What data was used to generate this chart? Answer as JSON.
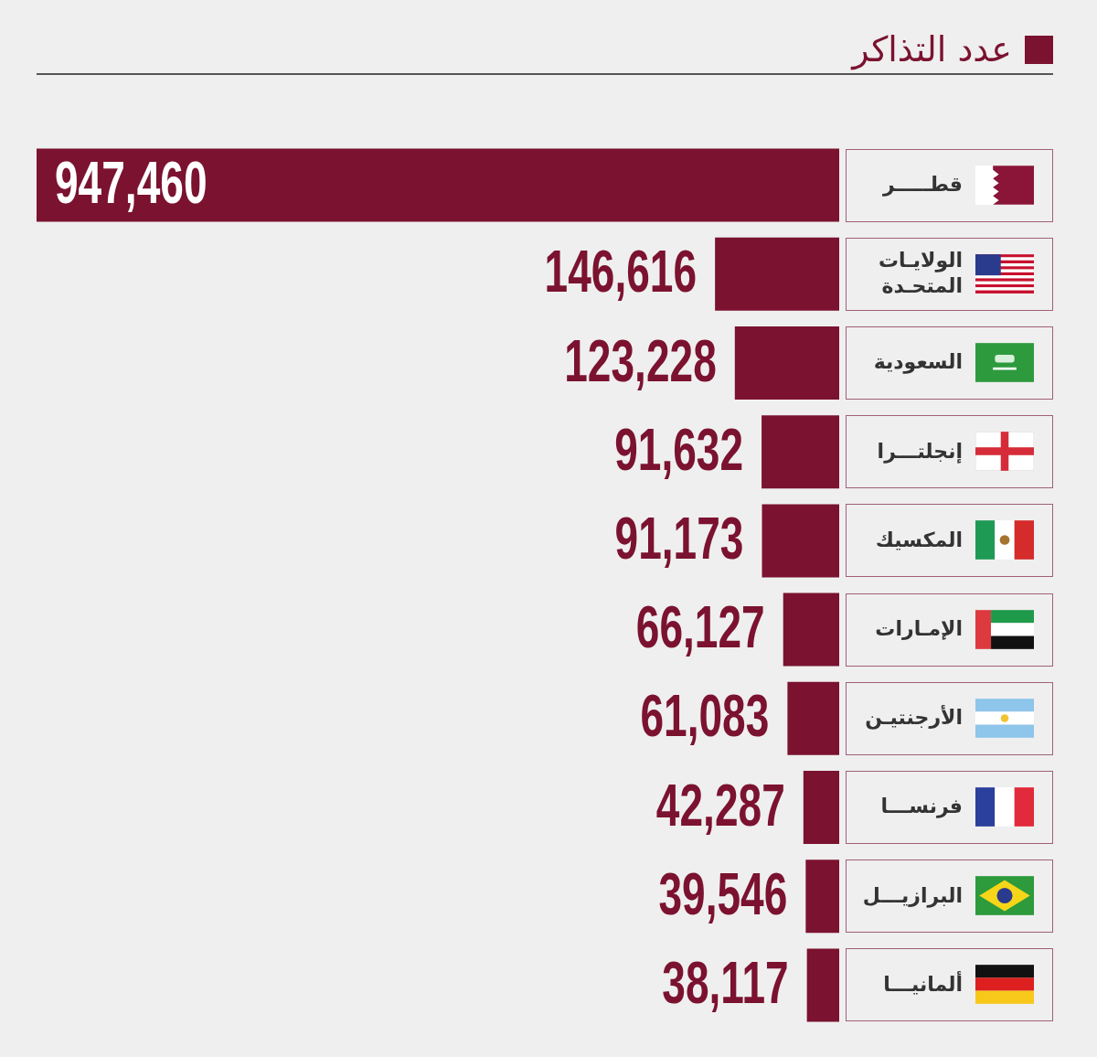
{
  "chart_data": {
    "type": "bar",
    "orientation": "horizontal",
    "categories": [
      "قطـــــر",
      "الولايـات المتحـدة",
      "السعودية",
      "إنجلتـــرا",
      "المكسيك",
      "الإمـارات",
      "الأرجنتيـن",
      "فرنســـا",
      "البرازيـــل",
      "ألمانيـــا"
    ],
    "series": [
      {
        "name": "عدد التذاكر",
        "color": "#7b1230",
        "values": [
          947460,
          146616,
          123228,
          91632,
          91173,
          66127,
          61083,
          42287,
          39546,
          38117
        ],
        "value_labels": [
          "947,460",
          "146,616",
          "123,228",
          "91,632",
          "91,173",
          "66,127",
          "61,083",
          "42,287",
          "39,546",
          "38,117"
        ]
      }
    ],
    "legend": "top right",
    "tick_labels": "y"
  }
}
